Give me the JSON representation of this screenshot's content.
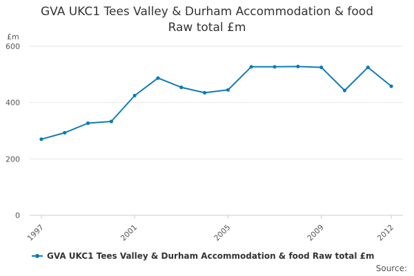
{
  "chart_data": {
    "type": "line",
    "title_line1": "GVA UKC1 Tees Valley & Durham Accommodation & food",
    "title_line2": "Raw total £m",
    "ylabel": "£m",
    "xlabel": "",
    "ylim": [
      0,
      600
    ],
    "yticks": [
      0,
      200,
      400,
      600
    ],
    "xlim": [
      1996.5,
      2012.5
    ],
    "xticks": [
      1997,
      2001,
      2005,
      2009,
      2012
    ],
    "grid": true,
    "legend_position": "bottom-left",
    "series": [
      {
        "name": "GVA UKC1 Tees Valley & Durham Accommodation & food Raw total £m",
        "color": "#0b7bb5",
        "x": [
          1997,
          1998,
          1999,
          2000,
          2001,
          2002,
          2003,
          2004,
          2005,
          2006,
          2007,
          2008,
          2009,
          2010,
          2011,
          2012
        ],
        "values": [
          270,
          293,
          327,
          333,
          425,
          487,
          454,
          435,
          445,
          527,
          527,
          528,
          525,
          443,
          525,
          458
        ]
      }
    ]
  },
  "credit": "Source:"
}
